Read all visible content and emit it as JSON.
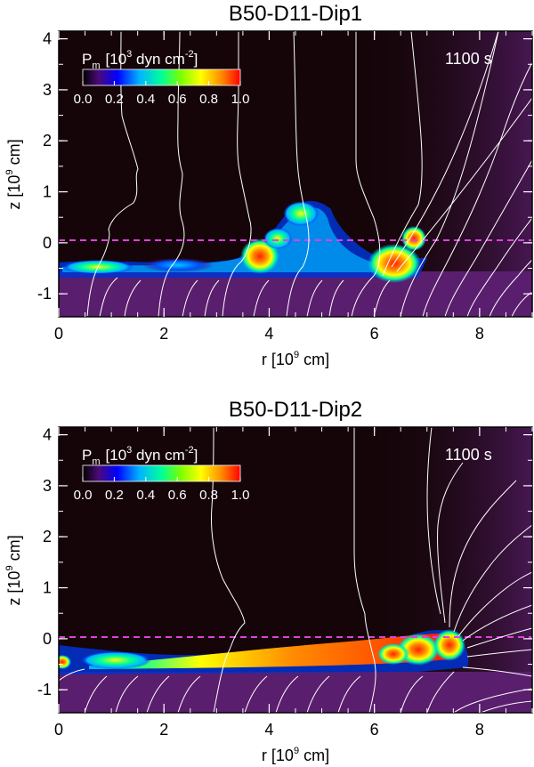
{
  "panels": [
    {
      "title": "B50-D11-Dip1",
      "time": "1100 s",
      "colorbar_label": "P",
      "colorbar_sub": "m",
      "colorbar_unit_pre": "[10",
      "colorbar_unit_exp": "3",
      "colorbar_unit_mid": " dyn cm",
      "colorbar_unit_exp2": "-2",
      "colorbar_unit_post": "]",
      "colorbar_ticks": [
        "0.0",
        "0.2",
        "0.4",
        "0.6",
        "0.8",
        "1.0"
      ],
      "xlabel_pre": "r [10",
      "xlabel_exp": "9",
      "xlabel_post": " cm]",
      "ylabel_pre": "z [10",
      "ylabel_exp": "9",
      "ylabel_post": " cm]",
      "xticks": [
        "0",
        "2",
        "4",
        "6",
        "8"
      ],
      "yticks": [
        "-1",
        "0",
        "1",
        "2",
        "3",
        "4"
      ]
    },
    {
      "title": "B50-D11-Dip2",
      "time": "1100 s",
      "colorbar_label": "P",
      "colorbar_sub": "m",
      "colorbar_unit_pre": "[10",
      "colorbar_unit_exp": "3",
      "colorbar_unit_mid": " dyn cm",
      "colorbar_unit_exp2": "-2",
      "colorbar_unit_post": "]",
      "colorbar_ticks": [
        "0.0",
        "0.2",
        "0.4",
        "0.6",
        "0.8",
        "1.0"
      ],
      "xlabel_pre": "r [10",
      "xlabel_exp": "9",
      "xlabel_post": " cm]",
      "ylabel_pre": "z [10",
      "ylabel_exp": "9",
      "ylabel_post": " cm]",
      "xticks": [
        "0",
        "2",
        "4",
        "6",
        "8"
      ],
      "yticks": [
        "-1",
        "0",
        "1",
        "2",
        "3",
        "4"
      ]
    }
  ],
  "chart_data": [
    {
      "type": "heatmap",
      "title": "B50-D11-Dip1",
      "annotation": "1100 s",
      "xlabel": "r [10^9 cm]",
      "ylabel": "z [10^9 cm]",
      "xlim": [
        0,
        9
      ],
      "ylim": [
        -1.45,
        4.15
      ],
      "colorbar": {
        "label": "P_m [10^3 dyn cm^-2]",
        "range": [
          0.0,
          1.0
        ],
        "colormap": "rainbow"
      },
      "reference_line": {
        "y": 0,
        "style": "dashed",
        "color": "#e040e0"
      },
      "disk": {
        "z_bottom": -0.65,
        "color": "#5a1e6e"
      },
      "high_pressure_regions": [
        {
          "r": 3.8,
          "z": -0.3,
          "level": 1.0
        },
        {
          "r": 4.6,
          "z": 0.5,
          "level": 0.9
        },
        {
          "r": 6.7,
          "z": -0.3,
          "level": 1.0
        },
        {
          "r": 6.9,
          "z": 0.0,
          "level": 0.8
        }
      ]
    },
    {
      "type": "heatmap",
      "title": "B50-D11-Dip2",
      "annotation": "1100 s",
      "xlabel": "r [10^9 cm]",
      "ylabel": "z [10^9 cm]",
      "xlim": [
        0,
        9
      ],
      "ylim": [
        -1.45,
        4.15
      ],
      "colorbar": {
        "label": "P_m [10^3 dyn cm^-2]",
        "range": [
          0.0,
          1.0
        ],
        "colormap": "rainbow"
      },
      "reference_line": {
        "y": 0,
        "style": "dashed",
        "color": "#e040e0"
      },
      "disk": {
        "z_bottom": -0.65,
        "color": "#5a1e6e"
      },
      "high_pressure_regions": [
        {
          "r": 5.0,
          "z": -0.35,
          "level": 0.85
        },
        {
          "r": 6.5,
          "z": -0.2,
          "level": 1.0
        },
        {
          "r": 7.4,
          "z": -0.1,
          "level": 1.0
        }
      ]
    }
  ],
  "colors": {
    "background": "#150509",
    "disk": "#5a1e6e",
    "dashed_line": "#e040e0",
    "field_lines": "#ffffff",
    "colormap": [
      "#000000",
      "#4b0a78",
      "#0000ff",
      "#00b4ff",
      "#00ff9a",
      "#78ff00",
      "#ffff00",
      "#ff8c00",
      "#ff0000"
    ]
  }
}
